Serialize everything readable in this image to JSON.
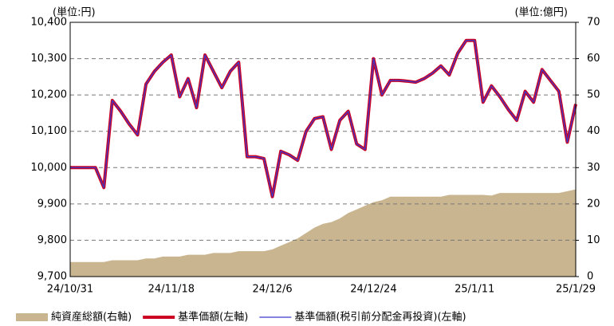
{
  "chart_data": {
    "type": "line",
    "y_label": "(単位:円)",
    "y2_label": "(単位:億円)",
    "categories": [
      "24/10/31",
      null,
      null,
      null,
      null,
      null,
      null,
      null,
      null,
      null,
      null,
      null,
      "24/11/18",
      null,
      null,
      null,
      null,
      null,
      null,
      null,
      null,
      null,
      null,
      null,
      "24/12/6",
      null,
      null,
      null,
      null,
      null,
      null,
      null,
      null,
      null,
      null,
      null,
      "24/12/24",
      null,
      null,
      null,
      null,
      null,
      null,
      null,
      null,
      null,
      null,
      null,
      "25/1/11",
      null,
      null,
      null,
      null,
      null,
      null,
      null,
      null,
      null,
      null,
      null,
      "25/1/29"
    ],
    "series": [
      {
        "name": "純資産総額(右軸)",
        "type": "area",
        "axis": "y2",
        "color": "#c9b58f",
        "values": [
          4,
          4,
          4,
          4,
          4,
          4.5,
          4.5,
          4.5,
          4.5,
          5,
          5,
          5.5,
          5.5,
          5.5,
          6,
          6,
          6,
          6.5,
          6.5,
          6.5,
          7,
          7,
          7,
          7,
          7.5,
          8.5,
          9.5,
          10.5,
          12,
          13.5,
          14.5,
          15,
          16,
          17.5,
          18.5,
          19.5,
          20.5,
          21,
          22,
          22,
          22,
          22,
          22,
          22,
          22,
          22.5,
          22.5,
          22.5,
          22.5,
          22.5,
          22.3,
          23,
          23,
          23,
          23,
          23,
          23,
          23,
          23,
          23.5,
          24
        ]
      },
      {
        "name": "基準価額(左軸)",
        "type": "line",
        "color": "#cc0022",
        "values": [
          10000,
          10000,
          10000,
          10000,
          9945,
          10185,
          10155,
          10120,
          10090,
          10230,
          10265,
          10290,
          10310,
          10195,
          10245,
          10165,
          10310,
          10265,
          10220,
          10265,
          10290,
          10030,
          10030,
          10025,
          9920,
          10045,
          10035,
          10020,
          10100,
          10135,
          10140,
          10050,
          10130,
          10155,
          10065,
          10050,
          10300,
          10200,
          10240,
          10240,
          10238,
          10235,
          10245,
          10260,
          10280,
          10255,
          10315,
          10350,
          10350,
          10180,
          10225,
          10195,
          10160,
          10130,
          10210,
          10180,
          10270,
          10240,
          10210,
          10070,
          10175
        ]
      },
      {
        "name": "基準価額(税引前分配金再投資)(左軸)",
        "type": "line",
        "color": "#3a3acc",
        "values": [
          10000,
          10000,
          10000,
          10000,
          9945,
          10185,
          10155,
          10120,
          10090,
          10230,
          10265,
          10290,
          10310,
          10195,
          10245,
          10165,
          10310,
          10265,
          10220,
          10265,
          10290,
          10030,
          10030,
          10025,
          9920,
          10045,
          10035,
          10020,
          10100,
          10135,
          10140,
          10050,
          10130,
          10155,
          10065,
          10050,
          10300,
          10200,
          10240,
          10240,
          10238,
          10235,
          10245,
          10260,
          10280,
          10255,
          10315,
          10350,
          10350,
          10180,
          10225,
          10195,
          10160,
          10130,
          10210,
          10180,
          10270,
          10240,
          10210,
          10070,
          10175
        ]
      }
    ],
    "ylim": [
      9700,
      10400
    ],
    "yticks": [
      {
        "value": 9700,
        "label": "9,700"
      },
      {
        "value": 9800,
        "label": "9,800"
      },
      {
        "value": 9900,
        "label": "9,900"
      },
      {
        "value": 10000,
        "label": "10,000"
      },
      {
        "value": 10100,
        "label": "10,100"
      },
      {
        "value": 10200,
        "label": "10,200"
      },
      {
        "value": 10300,
        "label": "10,300"
      },
      {
        "value": 10400,
        "label": "10,400"
      }
    ],
    "y2lim": [
      0,
      70
    ],
    "y2ticks": [
      0,
      10,
      20,
      30,
      40,
      50,
      60,
      70
    ],
    "grid": true
  }
}
